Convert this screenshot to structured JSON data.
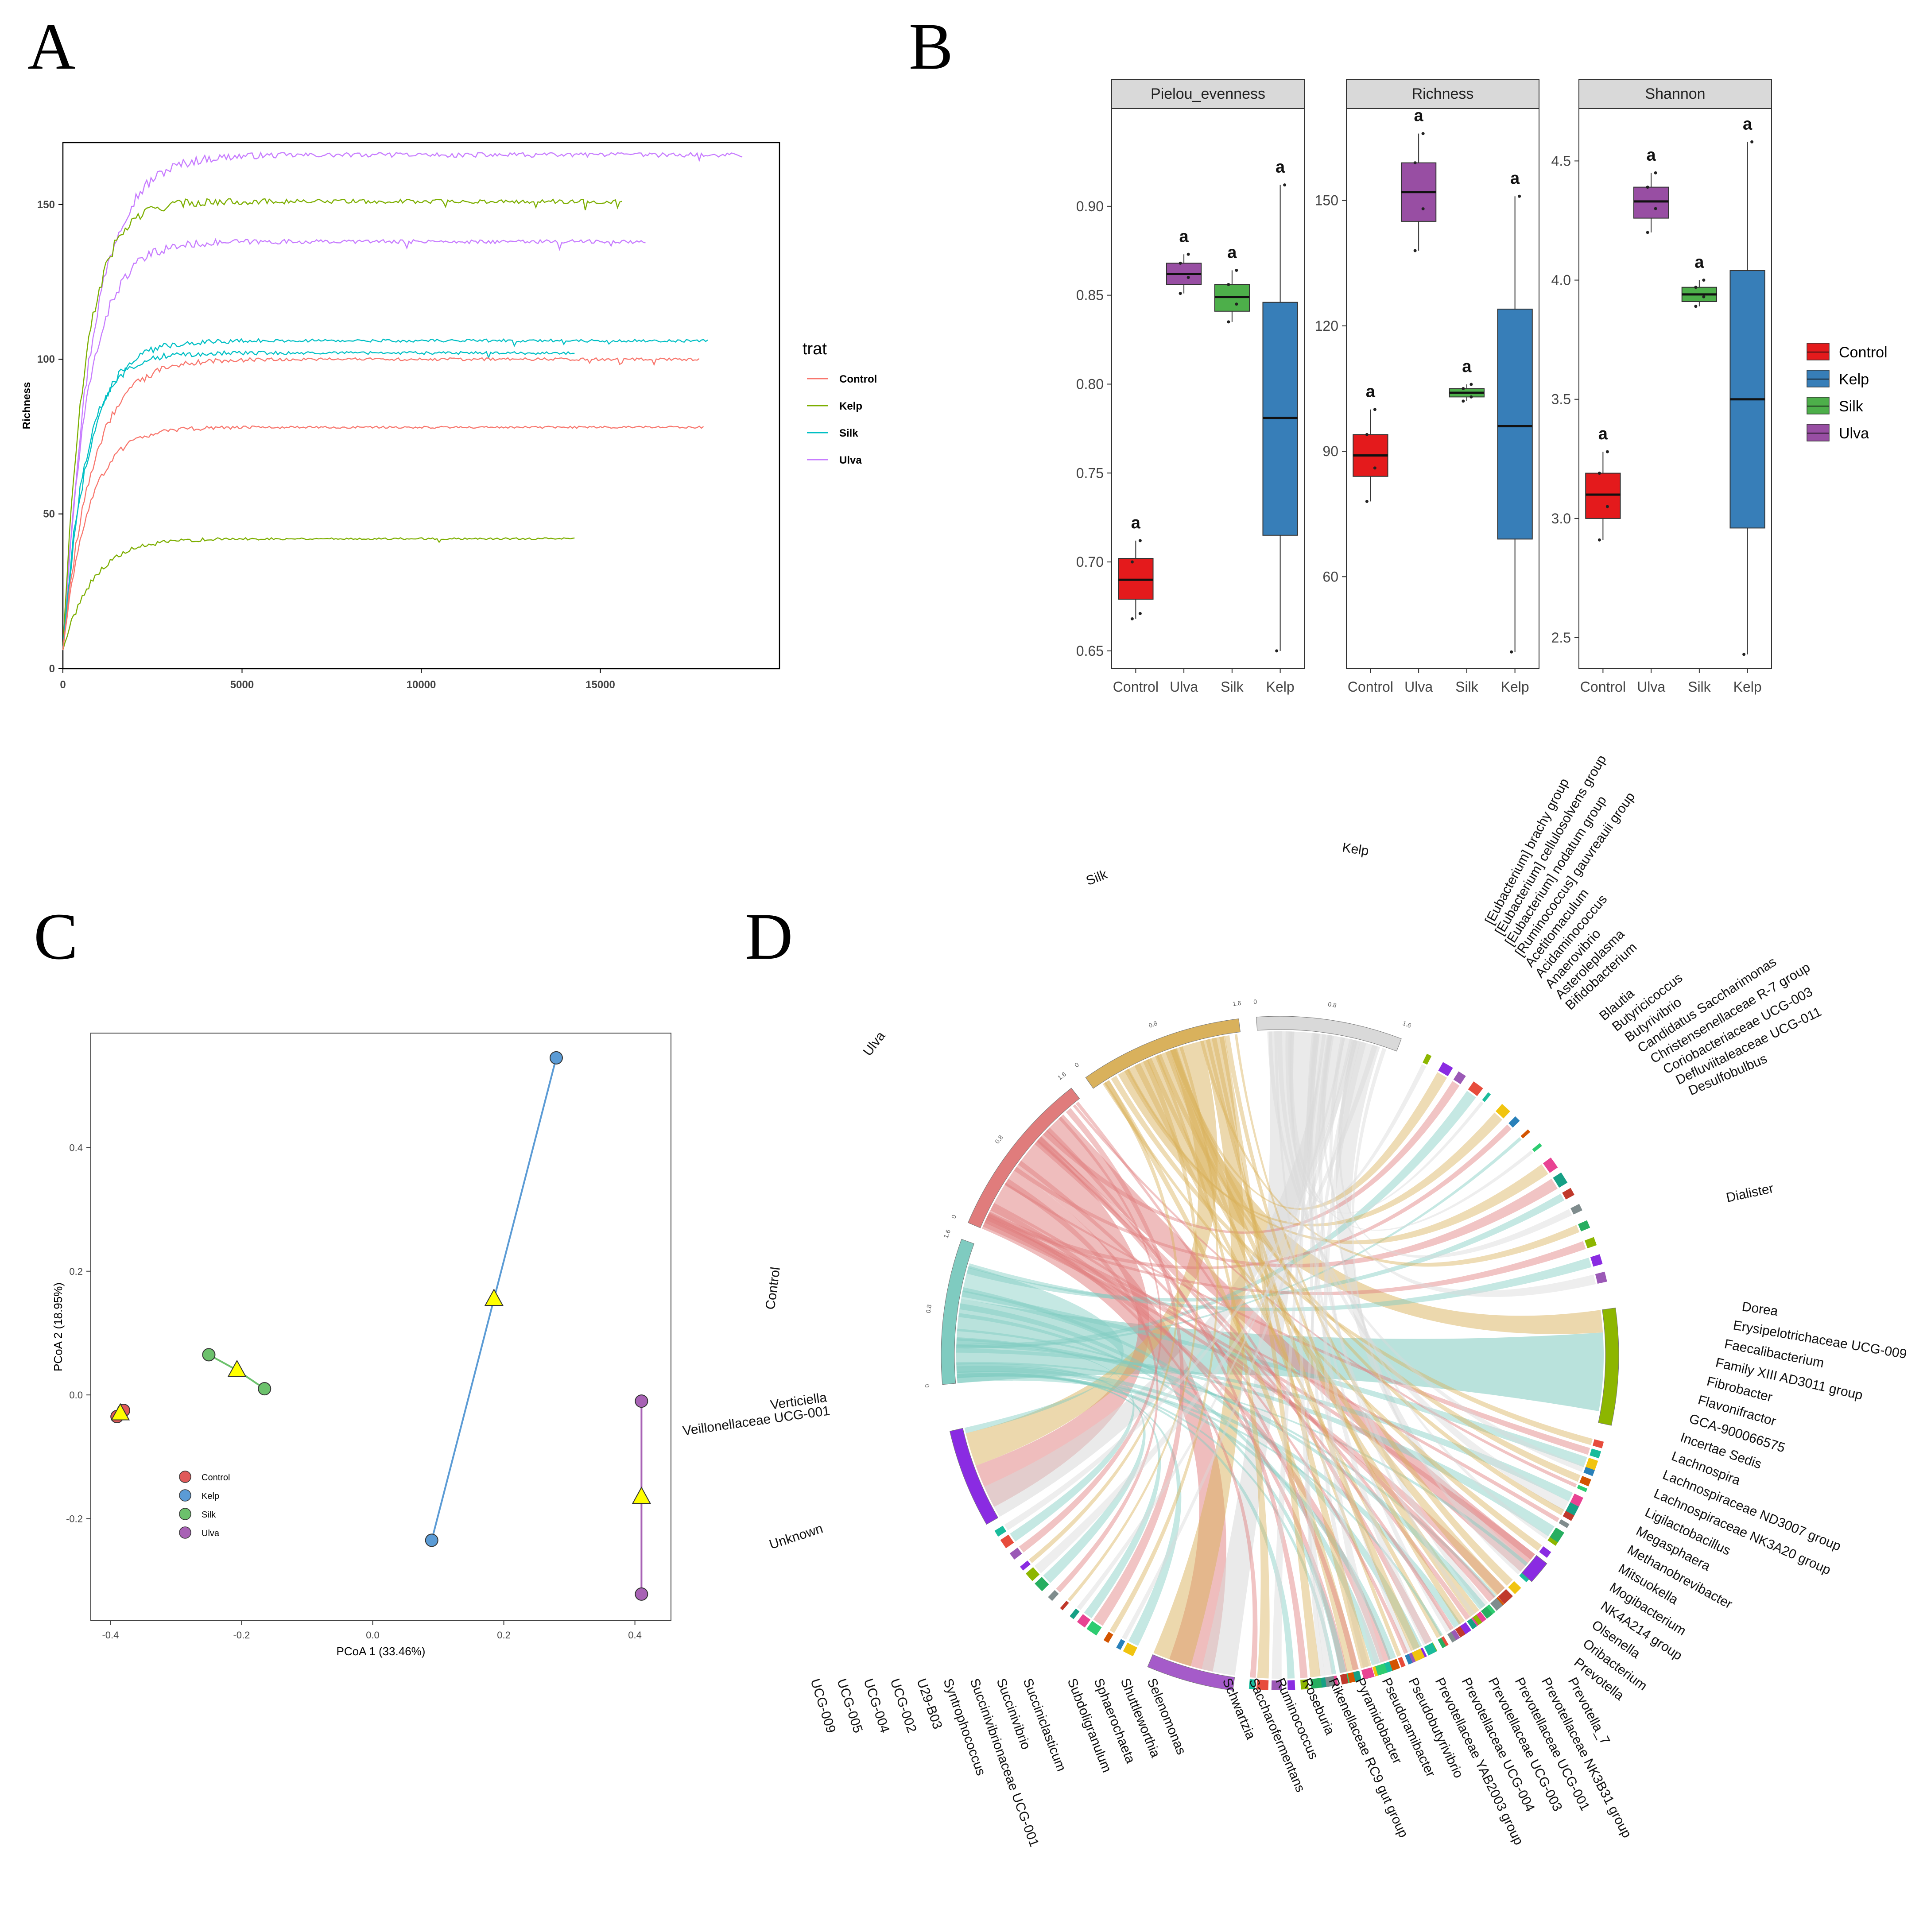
{
  "panels": {
    "a": "A",
    "b": "B",
    "c": "C",
    "d": "D"
  },
  "chart_data": [
    {
      "type": "line",
      "panel": "A",
      "title": "",
      "xlabel": "",
      "ylabel": "Richness",
      "xlim": [
        0,
        20000
      ],
      "ylim": [
        0,
        170
      ],
      "xticks": [
        0,
        5000,
        10000,
        15000
      ],
      "yticks": [
        0,
        50,
        100,
        150
      ],
      "legend_title": "trat",
      "legend_position": "right",
      "groups": [
        {
          "name": "Control",
          "color": "#F8766D"
        },
        {
          "name": "Kelp",
          "color": "#7CAE00"
        },
        {
          "name": "Silk",
          "color": "#00BFC4"
        },
        {
          "name": "Ulva",
          "color": "#C77CFF"
        }
      ],
      "series": [
        {
          "name": "Ulva",
          "group": "Ulva",
          "plateau": 166,
          "max_depth": 19000
        },
        {
          "name": "Ulva",
          "group": "Ulva",
          "plateau": 138,
          "max_depth": 16300
        },
        {
          "name": "Kelp",
          "group": "Kelp",
          "plateau": 151,
          "max_depth": 15600
        },
        {
          "name": "Kelp",
          "group": "Kelp",
          "plateau": 42,
          "max_depth": 14300
        },
        {
          "name": "Silk",
          "group": "Silk",
          "plateau": 106,
          "max_depth": 18000
        },
        {
          "name": "Silk",
          "group": "Silk",
          "plateau": 102,
          "max_depth": 14300
        },
        {
          "name": "Control",
          "group": "Control",
          "plateau": 100,
          "max_depth": 17800
        },
        {
          "name": "Control",
          "group": "Control",
          "plateau": 78,
          "max_depth": 17900
        }
      ]
    },
    {
      "type": "box",
      "panel": "B",
      "categories": [
        "Control",
        "Ulva",
        "Silk",
        "Kelp"
      ],
      "legend_position": "right",
      "legend": [
        {
          "name": "Control",
          "color": "#E41A1C"
        },
        {
          "name": "Kelp",
          "color": "#377EB8"
        },
        {
          "name": "Silk",
          "color": "#4DAF4A"
        },
        {
          "name": "Ulva",
          "color": "#984EA3"
        }
      ],
      "facets": [
        {
          "title": "Pielou_evenness",
          "ylim": [
            0.64,
            0.955
          ],
          "yticks": [
            0.65,
            0.7,
            0.75,
            0.8,
            0.85,
            0.9
          ],
          "ytick_labels": [
            "0.65",
            "0.70",
            "0.75",
            "0.80",
            "0.85",
            "0.90"
          ],
          "boxes": [
            {
              "group": "Control",
              "min": 0.668,
              "q1": 0.679,
              "median": 0.69,
              "q3": 0.702,
              "max": 0.712,
              "label": "a",
              "points": [
                0.668,
                0.671,
                0.7,
                0.712
              ]
            },
            {
              "group": "Ulva",
              "min": 0.851,
              "q1": 0.856,
              "median": 0.862,
              "q3": 0.868,
              "max": 0.873,
              "label": "a",
              "points": [
                0.851,
                0.86,
                0.868,
                0.873
              ]
            },
            {
              "group": "Silk",
              "min": 0.835,
              "q1": 0.841,
              "median": 0.849,
              "q3": 0.856,
              "max": 0.864,
              "label": "a",
              "points": [
                0.835,
                0.845,
                0.856,
                0.864
              ]
            },
            {
              "group": "Kelp",
              "min": 0.65,
              "q1": 0.715,
              "median": 0.781,
              "q3": 0.846,
              "max": 0.912,
              "label": "a",
              "points": [
                0.65,
                0.912
              ]
            }
          ]
        },
        {
          "title": "Richness",
          "ylim": [
            38,
            172
          ],
          "yticks": [
            60,
            90,
            120,
            150
          ],
          "ytick_labels": [
            "60",
            "90",
            "120",
            "150"
          ],
          "boxes": [
            {
              "group": "Control",
              "min": 78,
              "q1": 84,
              "median": 89,
              "q3": 94,
              "max": 100,
              "label": "a",
              "points": [
                78,
                86,
                94,
                100
              ]
            },
            {
              "group": "Ulva",
              "min": 138,
              "q1": 145,
              "median": 152,
              "q3": 159,
              "max": 166,
              "label": "a",
              "points": [
                138,
                148,
                159,
                166
              ]
            },
            {
              "group": "Silk",
              "min": 102,
              "q1": 103,
              "median": 104,
              "q3": 105,
              "max": 106,
              "label": "a",
              "points": [
                102,
                103,
                105,
                106
              ]
            },
            {
              "group": "Kelp",
              "min": 42,
              "q1": 69,
              "median": 96,
              "q3": 124,
              "max": 151,
              "label": "a",
              "points": [
                42,
                151
              ]
            }
          ]
        },
        {
          "title": "Shannon",
          "ylim": [
            2.37,
            4.72
          ],
          "yticks": [
            2.5,
            3.0,
            3.5,
            4.0,
            4.5
          ],
          "ytick_labels": [
            "2.5",
            "3.0",
            "3.5",
            "4.0",
            "4.5"
          ],
          "boxes": [
            {
              "group": "Control",
              "min": 2.91,
              "q1": 3.0,
              "median": 3.1,
              "q3": 3.19,
              "max": 3.28,
              "label": "a",
              "points": [
                2.91,
                3.05,
                3.19,
                3.28
              ]
            },
            {
              "group": "Ulva",
              "min": 4.2,
              "q1": 4.26,
              "median": 4.33,
              "q3": 4.39,
              "max": 4.45,
              "label": "a",
              "points": [
                4.2,
                4.3,
                4.39,
                4.45
              ]
            },
            {
              "group": "Silk",
              "min": 3.89,
              "q1": 3.91,
              "median": 3.94,
              "q3": 3.97,
              "max": 4.0,
              "label": "a",
              "points": [
                3.89,
                3.93,
                3.97,
                4.0
              ]
            },
            {
              "group": "Kelp",
              "min": 2.43,
              "q1": 2.96,
              "median": 3.5,
              "q3": 4.04,
              "max": 4.58,
              "label": "a",
              "points": [
                2.43,
                4.58
              ]
            }
          ]
        }
      ]
    },
    {
      "type": "scatter",
      "panel": "C",
      "xlabel": "PCoA 1 (33.46%)",
      "ylabel": "PCoA 2 (18.95%)",
      "xlim": [
        -0.43,
        0.455
      ],
      "ylim": [
        -0.365,
        0.585
      ],
      "xticks": [
        -0.4,
        -0.2,
        0.0,
        0.2,
        0.4
      ],
      "xtick_labels": [
        "-0.4",
        "-0.2",
        "0.0",
        "0.2",
        "0.4"
      ],
      "yticks": [
        -0.2,
        0.0,
        0.2,
        0.4
      ],
      "ytick_labels": [
        "-0.2",
        "0.0",
        "0.2",
        "0.4"
      ],
      "legend_position": "bottom-left",
      "groups": [
        {
          "name": "Control",
          "color": "#E05A5A",
          "points": [
            [
              -0.39,
              -0.035
            ],
            [
              -0.38,
              -0.025
            ]
          ],
          "centroid": [
            -0.385,
            -0.03
          ]
        },
        {
          "name": "Kelp",
          "color": "#5B9BD5",
          "points": [
            [
              0.28,
              0.545
            ],
            [
              0.09,
              -0.235
            ]
          ],
          "centroid": [
            0.185,
            0.155
          ]
        },
        {
          "name": "Silk",
          "color": "#6CC16C",
          "points": [
            [
              -0.25,
              0.065
            ],
            [
              -0.165,
              0.01
            ]
          ],
          "centroid": [
            -0.207,
            0.04
          ]
        },
        {
          "name": "Ulva",
          "color": "#A862B5",
          "points": [
            [
              0.41,
              -0.01
            ],
            [
              0.41,
              -0.322
            ]
          ],
          "centroid": [
            0.41,
            -0.165
          ]
        }
      ]
    },
    {
      "type": "chord",
      "panel": "D",
      "groups": [
        {
          "name": "Kelp",
          "color": "#D9D9D9"
        },
        {
          "name": "Silk",
          "color": "#D9B15C"
        },
        {
          "name": "Ulva",
          "color": "#E07C7C"
        },
        {
          "name": "Control",
          "color": "#7FCBC0"
        }
      ],
      "group_axis_ticks": [
        "0",
        "0.8",
        "1.6"
      ],
      "taxa_top_right": [
        "[Eubacterium] brachy group",
        "[Eubacterium] cellulosolvens group",
        "[Eubacterium] nodatum group",
        "[Ruminococcus] gauvreauii group",
        "Acetitomaculum",
        "Acidaminococcus",
        "Anaerovibrio",
        "Asteroleplasma",
        "Bifidobacterium",
        "Blautia",
        "Butyricicoccus",
        "Butyrivibrio",
        "Candidatus Saccharimonas",
        "Christensenellaceae R-7 group",
        "Coriobacteriaceae UCG-003",
        "Defluviitaleaceae UCG-011",
        "Desulfobulbus"
      ],
      "taxa_right": [
        "Dialister"
      ],
      "taxa_bottom_right": [
        "Dorea",
        "Erysipelotrichaceae UCG-009",
        "Faecalibacterium",
        "Family XIII AD3011 group",
        "Fibrobacter",
        "Flavonifractor",
        "GCA-900066575",
        "Incertae Sedis",
        "Lachnospira",
        "Lachnospiraceae ND3007 group",
        "Lachnospiraceae NK3A20 group",
        "Ligilactobacillus",
        "Megasphaera",
        "Methanobrevibacter",
        "Mitsuokella",
        "Mogibacterium",
        "NK4A214 group",
        "Olsenella",
        "Oribacterium",
        "Prevotella"
      ],
      "taxa_bottom": [
        "Prevotella_7",
        "Prevotellaceae NK3B31 group",
        "Prevotellaceae UCG-001",
        "Prevotellaceae UCG-003",
        "Prevotellaceae UCG-004",
        "Prevotellaceae YAB2003 group",
        "Pseudobutyrivibrio",
        "Pseudoramibacter",
        "Pyramidobacter",
        "Rikenellaceae RC9 gut group",
        "Roseburia",
        "Ruminococcus",
        "Saccharofermentans",
        "Schwartzia",
        "Selenomonas",
        "Shuttleworthia",
        "Sphaerochaeta",
        "Subdoligranulum",
        "Succiniclasticum",
        "Succinivibrio",
        "Succinivibrionaceae UCG-001",
        "Syntrophococcus",
        "U29-B03",
        "UCG-002",
        "UCG-004",
        "UCG-005",
        "UCG-009"
      ],
      "taxa_left": [
        "Unknown",
        "Veillonellaceae UCG-001",
        "Verticiella"
      ]
    }
  ]
}
